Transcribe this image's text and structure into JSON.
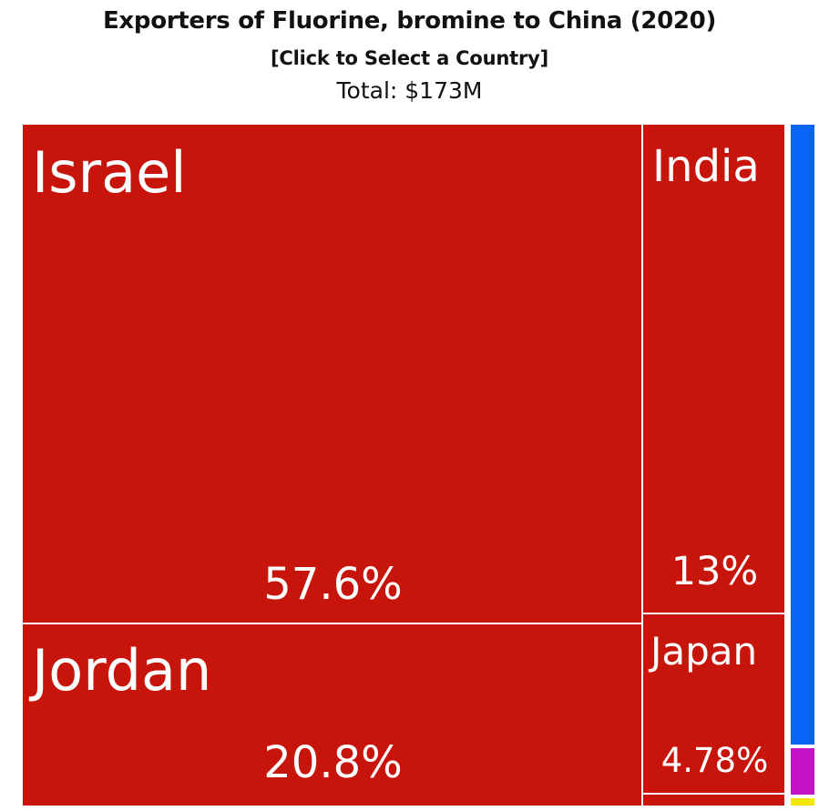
{
  "header": {
    "title": "Exporters of Fluorine, bromine to China (2020)",
    "subtitle": "[Click to Select a Country]",
    "total": "Total: $173M"
  },
  "chart_data": {
    "type": "treemap",
    "title": "Exporters of Fluorine, bromine to China (2020)",
    "total": "$173M",
    "colors": {
      "asia": "#c8150b",
      "north_america": "#0a64f5",
      "europe": "#c413c8",
      "other": "#f5e60a",
      "border": "#ffffff"
    },
    "items": [
      {
        "name": "Israel",
        "share": 57.6,
        "pct_label": "57.6%",
        "color": "#c8150b"
      },
      {
        "name": "Jordan",
        "share": 20.8,
        "pct_label": "20.8%",
        "color": "#c8150b"
      },
      {
        "name": "India",
        "share": 13.0,
        "pct_label": "13%",
        "color": "#c8150b"
      },
      {
        "name": "Japan",
        "share": 4.78,
        "pct_label": "4.78%",
        "color": "#c8150b"
      }
    ]
  }
}
